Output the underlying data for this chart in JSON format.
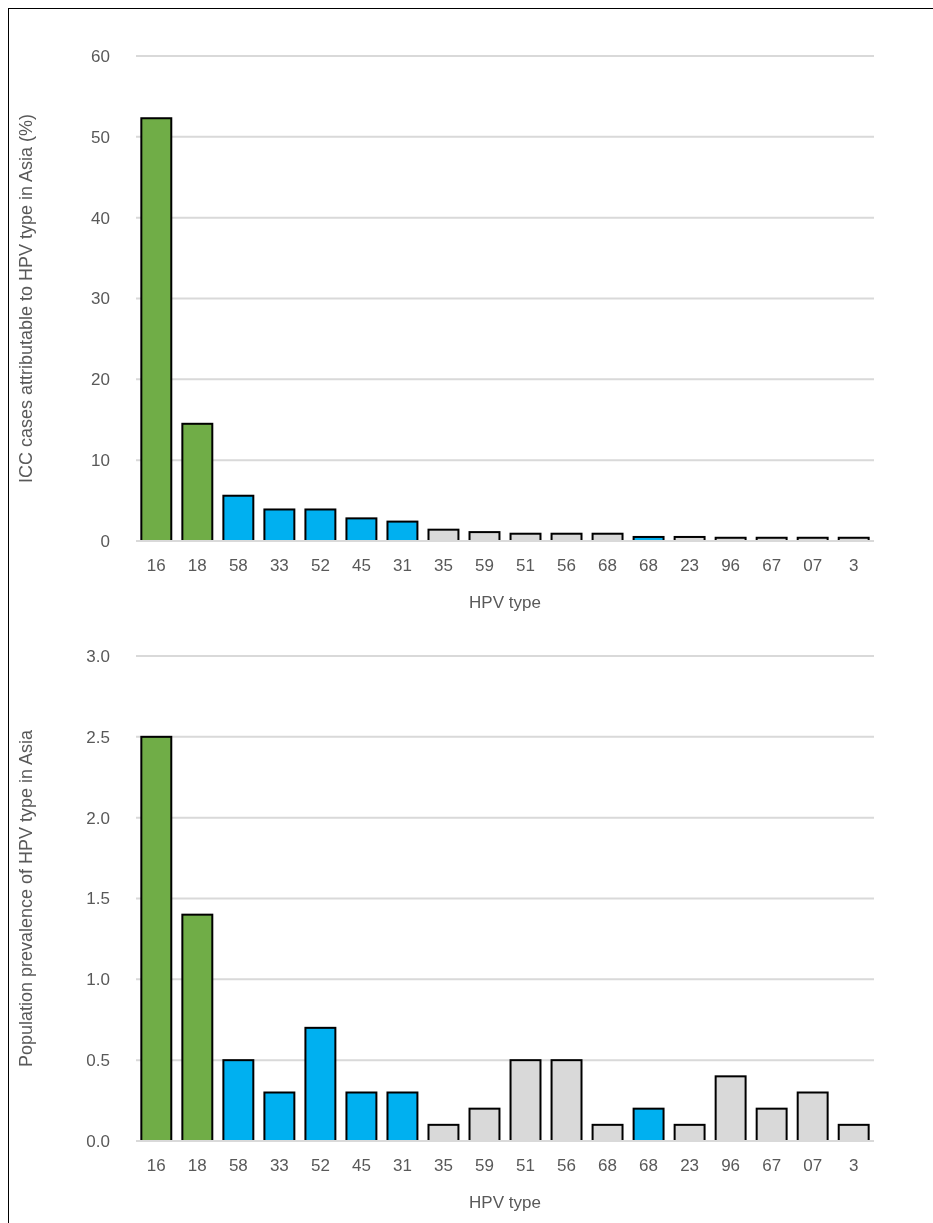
{
  "chart_data": [
    {
      "type": "bar",
      "xlabel": "HPV type",
      "ylabel": "ICC cases attributable to HPV type in Asia (%)",
      "categories": [
        "16",
        "18",
        "58",
        "33",
        "52",
        "45",
        "31",
        "35",
        "59",
        "51",
        "56",
        "68",
        "68",
        "23",
        "96",
        "67",
        "07",
        "3"
      ],
      "values": [
        52.3,
        14.5,
        5.6,
        3.9,
        3.9,
        2.8,
        2.4,
        1.4,
        1.1,
        0.9,
        0.9,
        0.9,
        0.5,
        0.5,
        0.4,
        0.4,
        0.4,
        0.4
      ],
      "colors": [
        "#70ad47",
        "#70ad47",
        "#00b0f0",
        "#00b0f0",
        "#00b0f0",
        "#00b0f0",
        "#00b0f0",
        "#d9d9d9",
        "#d9d9d9",
        "#d9d9d9",
        "#d9d9d9",
        "#d9d9d9",
        "#00b0f0",
        "#d9d9d9",
        "#d9d9d9",
        "#d9d9d9",
        "#d9d9d9",
        "#d9d9d9"
      ],
      "ylim": [
        0,
        60
      ],
      "yticks": [
        0,
        10,
        20,
        30,
        40,
        50,
        60
      ],
      "grid": "y"
    },
    {
      "type": "bar",
      "xlabel": "HPV type",
      "ylabel": "Population prevalence of HPV type in Asia",
      "categories": [
        "16",
        "18",
        "58",
        "33",
        "52",
        "45",
        "31",
        "35",
        "59",
        "51",
        "56",
        "68",
        "68",
        "23",
        "96",
        "67",
        "07",
        "3"
      ],
      "values": [
        2.5,
        1.4,
        0.5,
        0.3,
        0.7,
        0.3,
        0.3,
        0.1,
        0.2,
        0.5,
        0.5,
        0.1,
        0.2,
        0.1,
        0.4,
        0.2,
        0.3,
        0.1
      ],
      "colors": [
        "#70ad47",
        "#70ad47",
        "#00b0f0",
        "#00b0f0",
        "#00b0f0",
        "#00b0f0",
        "#00b0f0",
        "#d9d9d9",
        "#d9d9d9",
        "#d9d9d9",
        "#d9d9d9",
        "#d9d9d9",
        "#00b0f0",
        "#d9d9d9",
        "#d9d9d9",
        "#d9d9d9",
        "#d9d9d9",
        "#d9d9d9"
      ],
      "ylim": [
        0,
        3
      ],
      "yticks": [
        {
          "value": 0,
          "label": "0.0"
        },
        {
          "value": 0.5,
          "label": "0.5"
        },
        {
          "value": 1,
          "label": "1.0"
        },
        {
          "value": 1.5,
          "label": "1.5"
        },
        {
          "value": 2,
          "label": "2.0"
        },
        {
          "value": 2.5,
          "label": "2.5"
        },
        {
          "value": 3,
          "label": "3.0"
        }
      ],
      "grid": "y"
    }
  ]
}
